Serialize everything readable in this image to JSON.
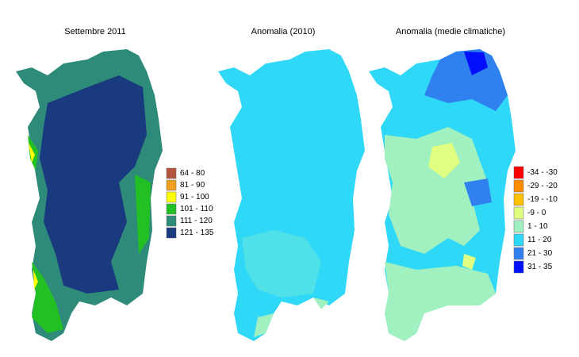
{
  "maps": [
    {
      "title": "Settembre 2011",
      "legend": [
        {
          "label": "64 - 80",
          "color": "#b5533c"
        },
        {
          "label": "81 - 90",
          "color": "#f0a020"
        },
        {
          "label": "91 - 100",
          "color": "#ffff00"
        },
        {
          "label": "101 - 110",
          "color": "#22c022"
        },
        {
          "label": "111 - 120",
          "color": "#2e8b7a"
        },
        {
          "label": "121 - 135",
          "color": "#1a3a80"
        }
      ]
    },
    {
      "title": "Anomalia (2010)"
    },
    {
      "title": "Anomalia (medie climatiche)",
      "legend": [
        {
          "label": "-34 - -30",
          "color": "#ff0000"
        },
        {
          "label": "-29 - -20",
          "color": "#ff8c00"
        },
        {
          "label": "-19 - -10",
          "color": "#ffc000"
        },
        {
          "label": "-9 - 0",
          "color": "#e0ff80"
        },
        {
          "label": "1 - 10",
          "color": "#a0f0c0"
        },
        {
          "label": "11 - 20",
          "color": "#30d8f8"
        },
        {
          "label": "21 - 30",
          "color": "#3080f0"
        },
        {
          "label": "31 - 35",
          "color": "#0010ff"
        }
      ]
    }
  ]
}
